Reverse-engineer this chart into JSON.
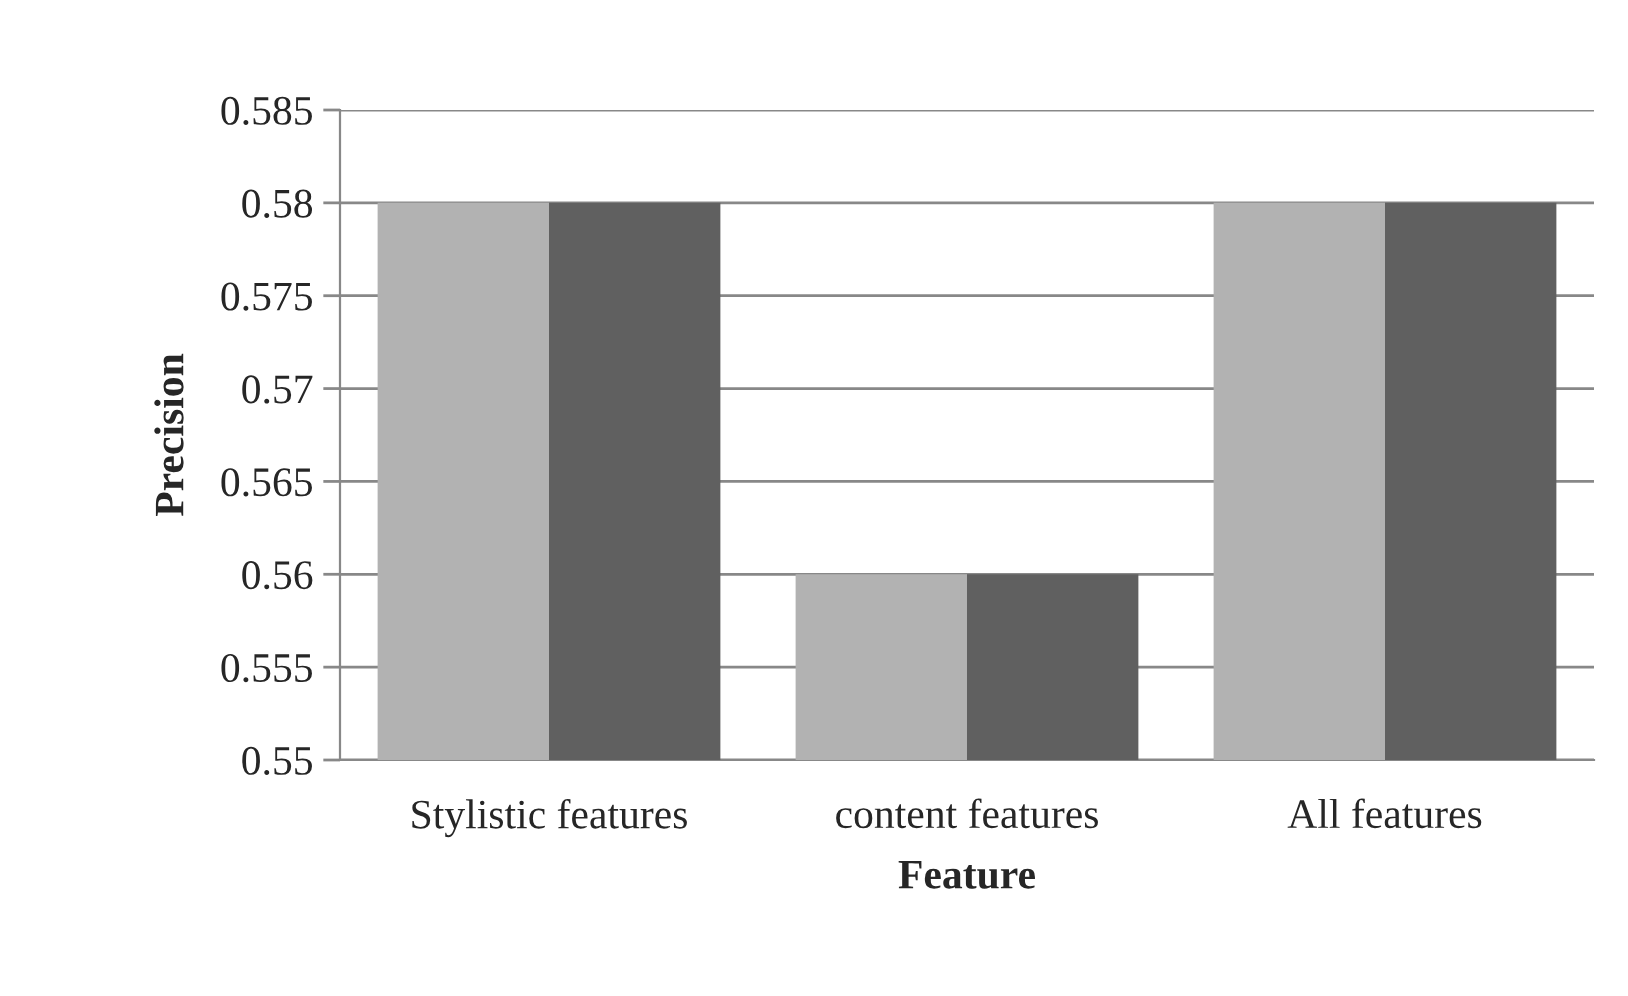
{
  "chart_data": {
    "type": "bar",
    "xlabel": "Feature",
    "ylabel": "Precision",
    "categories": [
      "Stylistic features",
      "content features",
      "All features"
    ],
    "series": [
      {
        "color": "#b2b2b2",
        "values": [
          0.58,
          0.56,
          0.58
        ]
      },
      {
        "color": "#606060",
        "values": [
          0.58,
          0.56,
          0.58
        ]
      }
    ],
    "ylim": [
      0.55,
      0.585
    ],
    "yticks": [
      0.55,
      0.555,
      0.56,
      0.565,
      0.57,
      0.575,
      0.58,
      0.585
    ],
    "grid": "y"
  }
}
